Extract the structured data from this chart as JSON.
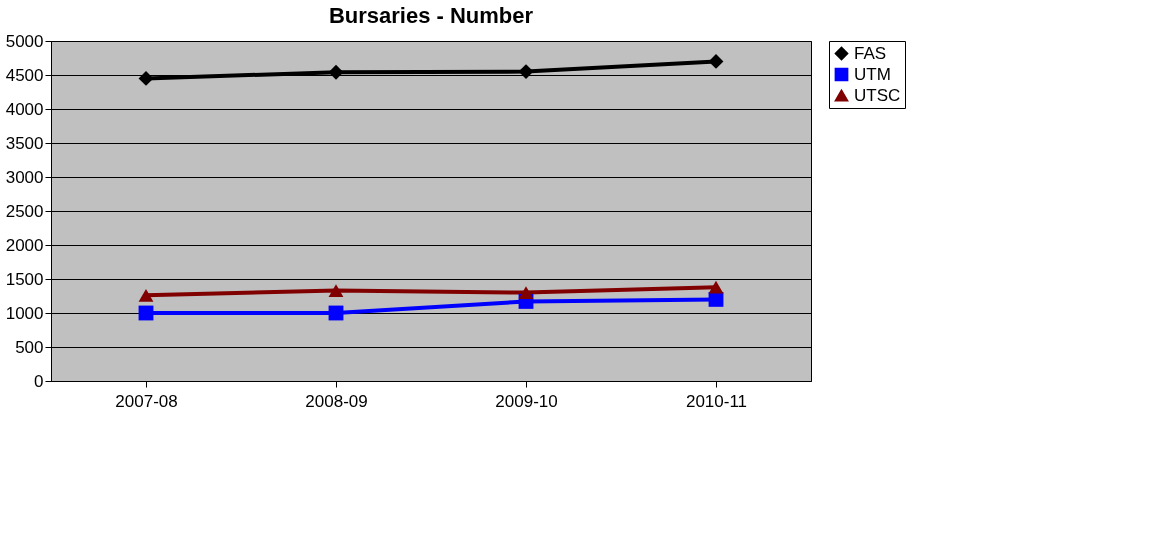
{
  "chart_data": {
    "type": "line",
    "title": "Bursaries - Number",
    "categories": [
      "2007-08",
      "2008-09",
      "2009-10",
      "2010-11"
    ],
    "series": [
      {
        "name": "FAS",
        "color": "#000000",
        "marker": "diamond",
        "values": [
          4450,
          4540,
          4550,
          4700
        ]
      },
      {
        "name": "UTM",
        "color": "#0000ff",
        "marker": "square",
        "values": [
          1000,
          1000,
          1170,
          1200
        ]
      },
      {
        "name": "UTSC",
        "color": "#800000",
        "marker": "triangle",
        "values": [
          1260,
          1330,
          1300,
          1380
        ]
      }
    ],
    "ylim": [
      0,
      5000
    ],
    "yticks": [
      0,
      500,
      1000,
      1500,
      2000,
      2500,
      3000,
      3500,
      4000,
      4500,
      5000
    ],
    "grid": "y",
    "legend": "right",
    "line_style": "solid"
  }
}
